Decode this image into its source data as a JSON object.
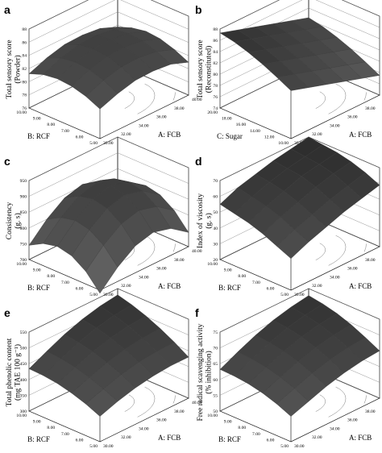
{
  "figure": {
    "background": "#ffffff",
    "line_color": "#222222",
    "surface_dark": "#1c1c1c",
    "surface_light": "#8a8a8a"
  },
  "chart_data": [
    {
      "id": "a",
      "panel_label": "a",
      "type": "surface3d",
      "zlabel_lines": [
        "Total sensory score",
        "(Powder)"
      ],
      "xlabel": "A: FCB",
      "ylabel": "B: RCF",
      "x_ticks": [
        "30.00",
        "32.00",
        "34.00",
        "36.00",
        "38.00",
        "40.00"
      ],
      "y_ticks": [
        "5.00",
        "6.00",
        "7.00",
        "8.00",
        "9.00",
        "10.00"
      ],
      "z_ticks": [
        "76",
        "78",
        "80",
        "82",
        "84",
        "86",
        "88"
      ],
      "xlim": [
        30,
        40
      ],
      "ylim": [
        5,
        10
      ],
      "zlim": [
        76,
        88
      ],
      "surface_grid": {
        "x": [
          30,
          32,
          34,
          36,
          38,
          40
        ],
        "y": [
          5,
          6,
          7,
          8,
          9,
          10
        ],
        "z": [
          [
            80.5,
            81.5,
            82.2,
            82.3,
            82.0,
            81.0
          ],
          [
            81.5,
            82.6,
            83.3,
            83.4,
            83.0,
            82.0
          ],
          [
            82.1,
            83.3,
            84.0,
            84.1,
            83.7,
            82.7
          ],
          [
            82.3,
            83.5,
            84.2,
            84.3,
            83.9,
            82.9
          ],
          [
            82.0,
            83.2,
            83.9,
            84.0,
            83.6,
            82.5
          ],
          [
            81.2,
            82.3,
            83.0,
            83.1,
            82.8,
            81.7
          ]
        ]
      }
    },
    {
      "id": "b",
      "panel_label": "b",
      "type": "surface3d",
      "zlabel_lines": [
        "Total sensory score",
        "(Reconstituted)"
      ],
      "xlabel": "A: FCB",
      "ylabel": "C: Sugar",
      "x_ticks": [
        "30.00",
        "32.00",
        "34.00",
        "36.00",
        "38.00",
        "40.00"
      ],
      "y_ticks": [
        "10.00",
        "12.00",
        "14.00",
        "16.00",
        "18.00",
        "20.00"
      ],
      "z_ticks": [
        "74",
        "76",
        "78",
        "80",
        "82",
        "84",
        "86",
        "88"
      ],
      "xlim": [
        30,
        40
      ],
      "ylim": [
        10,
        20
      ],
      "zlim": [
        74,
        88
      ],
      "surface_grid": {
        "x": [
          30,
          32,
          34,
          36,
          38,
          40
        ],
        "y": [
          10,
          12,
          14,
          16,
          18,
          20
        ],
        "z": [
          [
            82.5,
            81.5,
            80.5,
            79.5,
            78.5,
            77.5
          ],
          [
            83.8,
            82.8,
            81.8,
            80.8,
            79.8,
            78.8
          ],
          [
            85.0,
            84.0,
            83.0,
            82.0,
            81.0,
            80.0
          ],
          [
            86.0,
            85.0,
            84.0,
            83.0,
            82.0,
            81.0
          ],
          [
            86.8,
            85.8,
            84.8,
            83.8,
            82.8,
            81.8
          ],
          [
            87.3,
            86.3,
            85.3,
            84.3,
            83.3,
            82.3
          ]
        ]
      }
    },
    {
      "id": "c",
      "panel_label": "c",
      "type": "surface3d",
      "zlabel_lines": [
        "Consistency",
        "(g. s)"
      ],
      "xlabel": "A: FCB",
      "ylabel": "B: RCF",
      "x_ticks": [
        "30.00",
        "32.00",
        "34.00",
        "36.00",
        "38.00",
        "40.00"
      ],
      "y_ticks": [
        "5.00",
        "6.00",
        "7.00",
        "8.00",
        "9.00",
        "10.00"
      ],
      "z_ticks": [
        "700",
        "750",
        "800",
        "850",
        "900",
        "950"
      ],
      "xlim": [
        30,
        40
      ],
      "ylim": [
        5,
        10
      ],
      "zlim": [
        700,
        950
      ],
      "surface_grid": {
        "x": [
          30,
          32,
          34,
          36,
          38,
          40
        ],
        "y": [
          5,
          6,
          7,
          8,
          9,
          10
        ],
        "z": [
          [
            690,
            745,
            785,
            800,
            785,
            745
          ],
          [
            740,
            795,
            835,
            850,
            835,
            795
          ],
          [
            770,
            825,
            865,
            880,
            865,
            825
          ],
          [
            780,
            835,
            875,
            890,
            875,
            835
          ],
          [
            770,
            825,
            865,
            880,
            865,
            825
          ],
          [
            745,
            800,
            840,
            855,
            840,
            800
          ]
        ]
      }
    },
    {
      "id": "d",
      "panel_label": "d",
      "type": "surface3d",
      "zlabel_lines": [
        "Index of viscosity",
        "(g. s)"
      ],
      "xlabel": "A: FCB",
      "ylabel": "B: RCF",
      "x_ticks": [
        "30.00",
        "32.00",
        "34.00",
        "36.00",
        "38.00",
        "40.00"
      ],
      "y_ticks": [
        "5.00",
        "6.00",
        "7.00",
        "8.00",
        "9.00",
        "10.00"
      ],
      "z_ticks": [
        "20",
        "30",
        "40",
        "50",
        "60",
        "70"
      ],
      "xlim": [
        30,
        40
      ],
      "ylim": [
        5,
        10
      ],
      "zlim": [
        20,
        70
      ],
      "surface_grid": {
        "x": [
          30,
          32,
          34,
          36,
          38,
          40
        ],
        "y": [
          5,
          6,
          7,
          8,
          9,
          10
        ],
        "z": [
          [
            40,
            45,
            49,
            53,
            56,
            59
          ],
          [
            44,
            49,
            53,
            57,
            60,
            63
          ],
          [
            48,
            53,
            57,
            61,
            64,
            66
          ],
          [
            51,
            56,
            60,
            64,
            66,
            68
          ],
          [
            53,
            58,
            62,
            65,
            67,
            69
          ],
          [
            55,
            60,
            63,
            66,
            68,
            70
          ]
        ]
      }
    },
    {
      "id": "e",
      "panel_label": "e",
      "type": "surface3d",
      "zlabel_lines": [
        "Total phenolic content",
        "(mg TAE 100 g⁻¹)"
      ],
      "xlabel": "A: FCB",
      "ylabel": "B: RCF",
      "x_ticks": [
        "30.00",
        "32.00",
        "34.00",
        "36.00",
        "38.00",
        "40.00"
      ],
      "y_ticks": [
        "5.00",
        "6.00",
        "7.00",
        "8.00",
        "9.00",
        "10.00"
      ],
      "z_ticks": [
        "300",
        "350",
        "400",
        "450",
        "500",
        "550"
      ],
      "xlim": [
        30,
        40
      ],
      "ylim": [
        5,
        10
      ],
      "zlim": [
        300,
        550
      ],
      "surface_grid": {
        "x": [
          30,
          32,
          34,
          36,
          38,
          40
        ],
        "y": [
          5,
          6,
          7,
          8,
          9,
          10
        ],
        "z": [
          [
            380,
            400,
            415,
            425,
            430,
            430
          ],
          [
            400,
            420,
            438,
            450,
            456,
            458
          ],
          [
            415,
            437,
            457,
            471,
            479,
            482
          ],
          [
            426,
            450,
            472,
            488,
            498,
            502
          ],
          [
            432,
            458,
            482,
            500,
            512,
            518
          ],
          [
            434,
            462,
            488,
            508,
            522,
            530
          ]
        ]
      }
    },
    {
      "id": "f",
      "panel_label": "f",
      "type": "surface3d",
      "zlabel_lines": [
        "Free radical scavenging activity",
        "(% inhibition)"
      ],
      "xlabel": "A: FCB",
      "ylabel": "B: RCF",
      "x_ticks": [
        "30.00",
        "32.00",
        "34.00",
        "36.00",
        "38.00",
        "40.00"
      ],
      "y_ticks": [
        "5.00",
        "6.00",
        "7.00",
        "8.00",
        "9.00",
        "10.00"
      ],
      "z_ticks": [
        "50",
        "55",
        "60",
        "65",
        "70",
        "75"
      ],
      "xlim": [
        30,
        40
      ],
      "ylim": [
        5,
        10
      ],
      "zlim": [
        50,
        75
      ],
      "surface_grid": {
        "x": [
          30,
          32,
          34,
          36,
          38,
          40
        ],
        "y": [
          5,
          6,
          7,
          8,
          9,
          10
        ],
        "z": [
          [
            58,
            60,
            62,
            63.5,
            64.5,
            65
          ],
          [
            60,
            62.2,
            64.2,
            65.8,
            66.8,
            67.3
          ],
          [
            61.5,
            63.8,
            66,
            67.7,
            68.8,
            69.4
          ],
          [
            62.5,
            65,
            67.3,
            69.1,
            70.3,
            71
          ],
          [
            63,
            65.7,
            68.1,
            70,
            71.3,
            72.1
          ],
          [
            63.2,
            66,
            68.5,
            70.5,
            71.9,
            72.8
          ]
        ]
      }
    }
  ]
}
